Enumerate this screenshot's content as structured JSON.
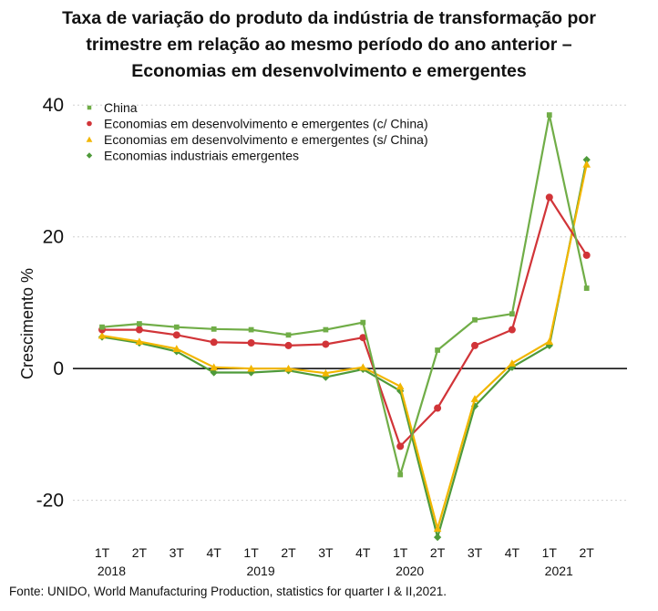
{
  "chart_data": {
    "type": "line",
    "title_lines": [
      "Taxa de variação do produto da indústria de transformação por",
      "trimestre em relação ao mesmo período do ano anterior –",
      "Economias em desenvolvimento e emergentes"
    ],
    "ylabel": "Crescimento %",
    "xlabel": "",
    "ylim": [
      -26,
      41
    ],
    "yticks": [
      -20,
      0,
      20,
      40
    ],
    "grid": "horizontal-dotted",
    "legend_position": "top-left",
    "categories": [
      "1T",
      "2T",
      "3T",
      "4T",
      "1T",
      "2T",
      "3T",
      "4T",
      "1T",
      "2T",
      "3T",
      "4T",
      "1T",
      "2T"
    ],
    "years": [
      {
        "label": "2018",
        "start": 0,
        "end": 1
      },
      {
        "label": "2019",
        "start": 4,
        "end": 5
      },
      {
        "label": "2020",
        "start": 8,
        "end": 9
      },
      {
        "label": "2021",
        "start": 12,
        "end": 13
      }
    ],
    "series": [
      {
        "name": "China",
        "color": "#70ad47",
        "marker": "square",
        "values": [
          6.3,
          6.8,
          6.3,
          6.0,
          5.9,
          5.1,
          5.9,
          7.0,
          -16.1,
          2.8,
          7.4,
          8.3,
          38.5,
          12.2
        ]
      },
      {
        "name": "Economias em desenvolvimento e emergentes (c/ China)",
        "color": "#d13438",
        "marker": "circle",
        "values": [
          5.9,
          5.9,
          5.1,
          4.0,
          3.9,
          3.5,
          3.7,
          4.7,
          -11.8,
          -6.0,
          3.5,
          5.9,
          26.0,
          17.2
        ]
      },
      {
        "name": "Economias em desenvolvimento e emergentes (s/ China)",
        "color": "#f2b600",
        "marker": "triangle",
        "values": [
          5.0,
          4.1,
          3.0,
          0.2,
          0.0,
          0.0,
          -0.7,
          0.2,
          -2.7,
          -24.3,
          -4.6,
          0.8,
          4.1,
          31.0
        ]
      },
      {
        "name": "Economias industriais emergentes",
        "color": "#4e9a3a",
        "marker": "diamond",
        "values": [
          4.8,
          3.9,
          2.6,
          -0.6,
          -0.6,
          -0.3,
          -1.3,
          -0.1,
          -3.4,
          -25.6,
          -5.7,
          0.2,
          3.5,
          31.7
        ]
      }
    ]
  },
  "source": "Fonte: UNIDO, World Manufacturing Production, statistics for quarter I & II,2021."
}
